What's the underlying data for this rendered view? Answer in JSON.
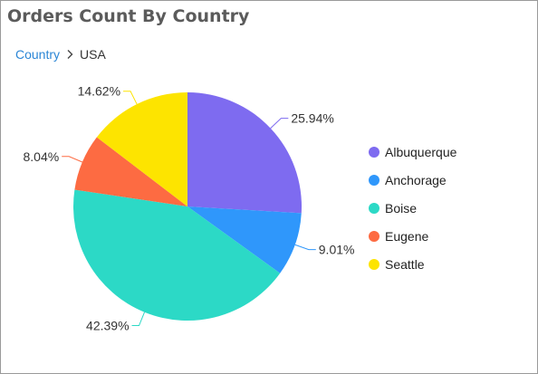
{
  "title": "Orders Count By Country",
  "breadcrumb": {
    "root": "Country",
    "current": "USA"
  },
  "chart_data": {
    "type": "pie",
    "categories": [
      "Albuquerque",
      "Anchorage",
      "Boise",
      "Eugene",
      "Seattle"
    ],
    "values": [
      25.94,
      9.01,
      42.39,
      8.04,
      14.62
    ],
    "labels": [
      "25.94%",
      "9.01%",
      "42.39%",
      "8.04%",
      "14.62%"
    ],
    "colors": [
      "#7e6bf0",
      "#2f97fb",
      "#2cd9c6",
      "#fd6b42",
      "#fde400"
    ],
    "start_angle_deg": 0,
    "direction": "clockwise",
    "legend_position": "right"
  }
}
